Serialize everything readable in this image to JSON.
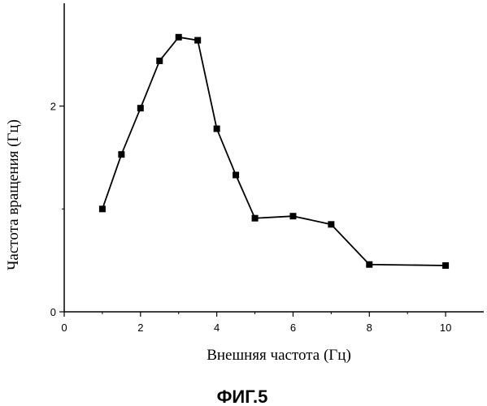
{
  "chart_data": {
    "type": "line",
    "xlabel": "Внешняя частота (Гц)",
    "ylabel": "Частота вращения (Гц)",
    "xlim": [
      0,
      11
    ],
    "ylim": [
      0,
      3
    ],
    "xticks": [
      0,
      2,
      4,
      6,
      8,
      10
    ],
    "yticks": [
      0,
      2
    ],
    "grid": false,
    "series": [
      {
        "marker": "square",
        "color": "#000000",
        "x": [
          1,
          1.5,
          2,
          2.5,
          3,
          3.5,
          4,
          4.5,
          5,
          6,
          7,
          8,
          10
        ],
        "y": [
          1.0,
          1.53,
          1.98,
          2.44,
          2.67,
          2.64,
          1.78,
          1.33,
          0.91,
          0.93,
          0.85,
          0.46,
          0.45
        ]
      }
    ]
  },
  "caption": "ФИГ.5"
}
